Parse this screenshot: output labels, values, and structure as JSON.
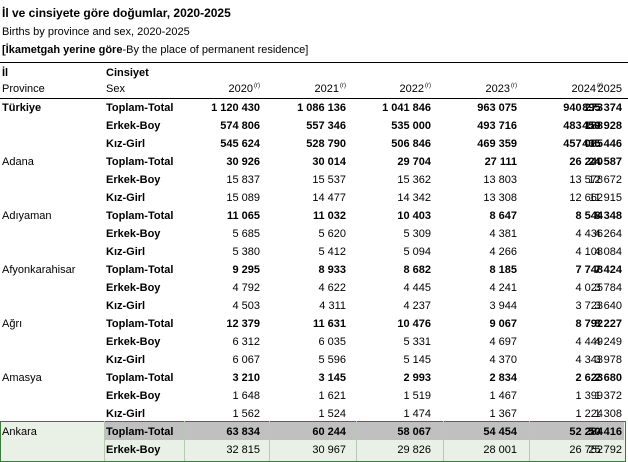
{
  "sheet": {
    "title": "İl ve cinsiyete göre doğumlar, 2020-2025",
    "subtitle": "Births by province and sex, 2020-2025",
    "note_bold": "[İkametgah yerine göre",
    "note_rest": "-By the place of permanent residence]",
    "header": {
      "province_tr": "İl",
      "province_en": "Province",
      "sex_tr": "Cinsiyet",
      "sex_en": "Sex",
      "years": [
        {
          "label": "2020",
          "mark": "(r)"
        },
        {
          "label": "2021",
          "mark": "(r)"
        },
        {
          "label": "2022",
          "mark": "(r)"
        },
        {
          "label": "2023",
          "mark": "(r)"
        },
        {
          "label": "2024",
          "mark": "(r)"
        },
        {
          "label": "2025",
          "mark": ""
        }
      ]
    },
    "rows": [
      {
        "province": "Türkiye",
        "sex": "Toplam-Total",
        "values": [
          "1 120 430",
          "1 086 136",
          "1 041 846",
          "963 075",
          "940 273",
          "895 374"
        ]
      },
      {
        "province": "",
        "sex": "Erkek-Boy",
        "values": [
          "574 806",
          "557 346",
          "535 000",
          "493 716",
          "483 188",
          "459 928"
        ]
      },
      {
        "province": "",
        "sex": "Kız-Girl",
        "values": [
          "545 624",
          "528 790",
          "506 846",
          "469 359",
          "457 085",
          "435 446"
        ]
      },
      {
        "province": "Adana",
        "sex": "Toplam-Total",
        "values": [
          "30 926",
          "30 014",
          "29 704",
          "27 111",
          "26 240",
          "24 587"
        ]
      },
      {
        "province": "",
        "sex": "Erkek-Boy",
        "values": [
          "15 837",
          "15 537",
          "15 362",
          "13 803",
          "13 578",
          "12 672"
        ]
      },
      {
        "province": "",
        "sex": "Kız-Girl",
        "values": [
          "15 089",
          "14 477",
          "14 342",
          "13 308",
          "12 662",
          "11 915"
        ]
      },
      {
        "province": "Adıyaman",
        "sex": "Toplam-Total",
        "values": [
          "11 065",
          "11 032",
          "10 403",
          "8 647",
          "8 544",
          "8 348"
        ]
      },
      {
        "province": "",
        "sex": "Erkek-Boy",
        "values": [
          "5 685",
          "5 620",
          "5 309",
          "4 381",
          "4 436",
          "4 264"
        ]
      },
      {
        "province": "",
        "sex": "Kız-Girl",
        "values": [
          "5 380",
          "5 412",
          "5 094",
          "4 266",
          "4 108",
          "4 084"
        ]
      },
      {
        "province": "Afyonkarahisar",
        "sex": "Toplam-Total",
        "values": [
          "9 295",
          "8 933",
          "8 682",
          "8 185",
          "7 748",
          "7 424"
        ]
      },
      {
        "province": "",
        "sex": "Erkek-Boy",
        "values": [
          "4 792",
          "4 622",
          "4 445",
          "4 241",
          "4 025",
          "3 784"
        ]
      },
      {
        "province": "",
        "sex": "Kız-Girl",
        "values": [
          "4 503",
          "4 311",
          "4 237",
          "3 944",
          "3 723",
          "3 640"
        ]
      },
      {
        "province": "Ağrı",
        "sex": "Toplam-Total",
        "values": [
          "12 379",
          "11 631",
          "10 476",
          "9 067",
          "8 792",
          "8 227"
        ]
      },
      {
        "province": "",
        "sex": "Erkek-Boy",
        "values": [
          "6 312",
          "6 035",
          "5 331",
          "4 697",
          "4 449",
          "4 249"
        ]
      },
      {
        "province": "",
        "sex": "Kız-Girl",
        "values": [
          "6 067",
          "5 596",
          "5 145",
          "4 370",
          "4 343",
          "3 978"
        ]
      },
      {
        "province": "Amasya",
        "sex": "Toplam-Total",
        "values": [
          "3 210",
          "3 145",
          "2 993",
          "2 834",
          "2 623",
          "2 680"
        ]
      },
      {
        "province": "",
        "sex": "Erkek-Boy",
        "values": [
          "1 648",
          "1 621",
          "1 519",
          "1 467",
          "1 399",
          "1 372"
        ]
      },
      {
        "province": "",
        "sex": "Kız-Girl",
        "values": [
          "1 562",
          "1 524",
          "1 474",
          "1 367",
          "1 224",
          "1 308"
        ]
      },
      {
        "province": "Ankara",
        "sex": "Toplam-Total",
        "values": [
          "63 834",
          "60 244",
          "58 067",
          "54 454",
          "52 284",
          "50 416"
        ]
      },
      {
        "province": "",
        "sex": "Erkek-Boy",
        "values": [
          "32 815",
          "30 967",
          "29 826",
          "28 001",
          "26 752",
          "25 792"
        ]
      }
    ],
    "colors": {
      "selection_border": "#3c7a3c",
      "selection_fill": "#e9f1e6",
      "band_fill": "#c0c0c0"
    }
  }
}
